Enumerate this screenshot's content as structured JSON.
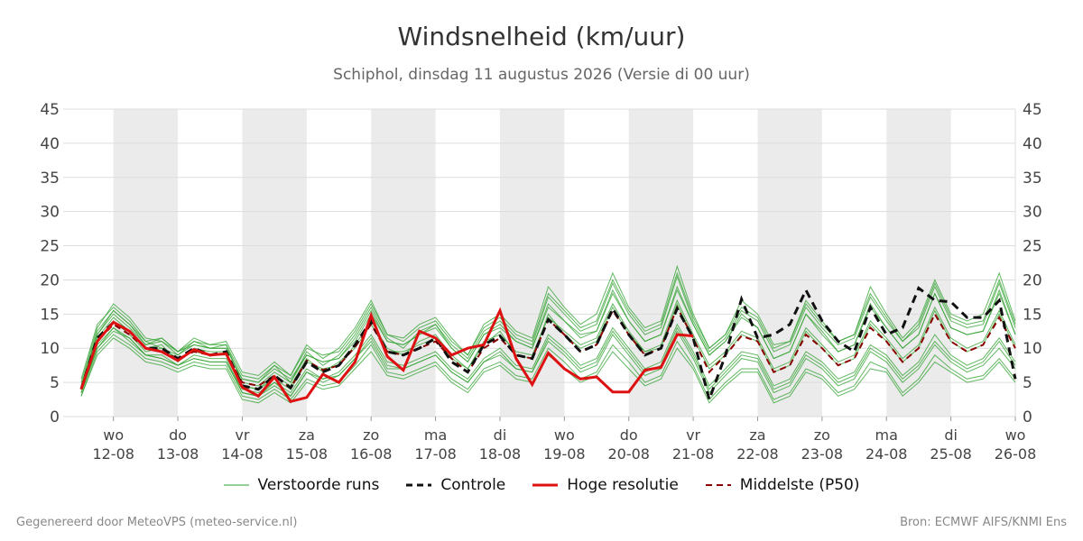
{
  "title": "Windsnelheid (km/uur)",
  "subtitle": "Schiphol, dinsdag 11 augustus 2026 (Versie di 00 uur)",
  "footer": {
    "left": "Gegenereerd door MeteoVPS (meteo-service.nl)",
    "right": "Bron: ECMWF AIFS/KNMI Ens"
  },
  "legend": {
    "ensemble": "Verstoorde runs",
    "control": "Controle",
    "hires": "Hoge resolutie",
    "median": "Middelste (P50)"
  },
  "colors": {
    "ensemble": "#2ca02c",
    "control": "#111111",
    "hires": "#dd1111",
    "median": "#8b0000",
    "weekend_band": "#ebebeb",
    "grid": "#dddddd",
    "tick_text": "#444444"
  },
  "chart_data": {
    "type": "line",
    "title": "Windsnelheid (km/uur)",
    "subtitle": "Schiphol, dinsdag 11 augustus 2026 (Versie di 00 uur)",
    "x_unit": "dag",
    "xlim": [
      11.75,
      26.0
    ],
    "ylim": [
      0,
      45
    ],
    "y_ticks": [
      0,
      5,
      10,
      15,
      20,
      25,
      30,
      35,
      40,
      45
    ],
    "y_axis_both_sides": true,
    "grid": true,
    "legend_position": "bottom",
    "x_ticks": [
      {
        "x": 12,
        "day": "wo",
        "date": "12-08"
      },
      {
        "x": 13,
        "day": "do",
        "date": "13-08"
      },
      {
        "x": 14,
        "day": "vr",
        "date": "14-08"
      },
      {
        "x": 15,
        "day": "za",
        "date": "15-08"
      },
      {
        "x": 16,
        "day": "zo",
        "date": "16-08"
      },
      {
        "x": 17,
        "day": "ma",
        "date": "17-08"
      },
      {
        "x": 18,
        "day": "di",
        "date": "18-08"
      },
      {
        "x": 19,
        "day": "wo",
        "date": "19-08"
      },
      {
        "x": 20,
        "day": "do",
        "date": "20-08"
      },
      {
        "x": 21,
        "day": "vr",
        "date": "21-08"
      },
      {
        "x": 22,
        "day": "za",
        "date": "22-08"
      },
      {
        "x": 23,
        "day": "zo",
        "date": "23-08"
      },
      {
        "x": 24,
        "day": "ma",
        "date": "24-08"
      },
      {
        "x": 25,
        "day": "di",
        "date": "25-08"
      },
      {
        "x": 26,
        "day": "wo",
        "date": "26-08"
      }
    ],
    "shaded_bands": [
      [
        12,
        13
      ],
      [
        14,
        15
      ],
      [
        16,
        17
      ],
      [
        18,
        19
      ],
      [
        20,
        21
      ],
      [
        22,
        23
      ],
      [
        24,
        25
      ]
    ],
    "control": {
      "name": "Controle",
      "x": [
        11.5,
        11.75,
        12.0,
        12.25,
        12.5,
        12.75,
        13.0,
        13.25,
        13.5,
        13.75,
        14.0,
        14.25,
        14.5,
        14.75,
        15.0,
        15.25,
        15.5,
        15.75,
        16.0,
        16.25,
        16.5,
        16.75,
        17.0,
        17.25,
        17.5,
        17.75,
        18.0,
        18.25,
        18.5,
        18.75,
        19.0,
        19.25,
        19.5,
        19.75,
        20.0,
        20.25,
        20.5,
        20.75,
        21.0,
        21.25,
        21.5,
        21.75,
        22.0,
        22.25,
        22.5,
        22.75,
        23.0,
        23.25,
        23.5,
        23.75,
        24.0,
        24.25,
        24.5,
        24.75,
        25.0,
        25.25,
        25.5,
        25.75,
        26.0
      ],
      "values": [
        4.0,
        11.5,
        13.8,
        12.5,
        10.0,
        10.0,
        8.5,
        10.0,
        9.0,
        9.5,
        4.5,
        4.0,
        6.0,
        4.2,
        8.0,
        6.5,
        7.5,
        10.5,
        14.0,
        9.5,
        9.0,
        10.0,
        11.5,
        8.0,
        6.5,
        10.5,
        11.8,
        9.0,
        8.5,
        14.2,
        12.0,
        9.5,
        10.5,
        15.8,
        12.0,
        9.0,
        10.0,
        15.8,
        11.5,
        2.5,
        9.0,
        17.2,
        11.5,
        12.0,
        13.5,
        18.5,
        14.0,
        11.0,
        9.5,
        16.0,
        12.0,
        13.0,
        18.8,
        17.0,
        16.8,
        14.5,
        14.5,
        17.0,
        5.5
      ]
    },
    "hires": {
      "name": "Hoge resolutie",
      "x": [
        11.5,
        11.75,
        12.0,
        12.25,
        12.5,
        12.75,
        13.0,
        13.25,
        13.5,
        13.75,
        14.0,
        14.25,
        14.5,
        14.75,
        15.0,
        15.25,
        15.5,
        15.75,
        16.0,
        16.25,
        16.5,
        16.75,
        17.0,
        17.25,
        17.5,
        17.75,
        18.0,
        18.25,
        18.5,
        18.75,
        19.0,
        19.25,
        19.5,
        19.75,
        20.0,
        20.25,
        20.5,
        20.75,
        21.0
      ],
      "values": [
        4.0,
        11.0,
        13.8,
        12.5,
        10.0,
        9.5,
        8.2,
        9.8,
        9.0,
        9.2,
        4.3,
        3.0,
        5.8,
        2.2,
        2.8,
        6.2,
        5.0,
        8.0,
        14.8,
        8.8,
        6.8,
        12.5,
        11.5,
        9.0,
        10.0,
        10.5,
        15.5,
        8.5,
        4.7,
        9.3,
        7.0,
        5.5,
        5.8,
        3.6,
        3.6,
        6.8,
        7.2,
        12.0,
        11.8
      ]
    },
    "median": {
      "name": "Middelste (P50)",
      "x": [
        11.5,
        11.75,
        12.0,
        12.25,
        12.5,
        12.75,
        13.0,
        13.25,
        13.5,
        13.75,
        14.0,
        14.25,
        14.5,
        14.75,
        15.0,
        15.25,
        15.5,
        15.75,
        16.0,
        16.25,
        16.5,
        16.75,
        17.0,
        17.25,
        17.5,
        17.75,
        18.0,
        18.25,
        18.5,
        18.75,
        19.0,
        19.25,
        19.5,
        19.75,
        20.0,
        20.25,
        20.5,
        20.75,
        21.0,
        21.25,
        21.5,
        21.75,
        22.0,
        22.25,
        22.5,
        22.75,
        23.0,
        23.25,
        23.5,
        23.75,
        24.0,
        24.25,
        24.5,
        24.75,
        25.0,
        25.25,
        25.5,
        25.75,
        26.0
      ],
      "values": [
        4.0,
        11.0,
        13.5,
        12.0,
        10.0,
        9.5,
        8.5,
        9.5,
        9.0,
        9.2,
        5.0,
        4.5,
        6.0,
        4.2,
        8.2,
        6.8,
        7.5,
        10.2,
        13.5,
        9.5,
        9.0,
        10.0,
        11.0,
        8.5,
        6.5,
        10.0,
        11.5,
        9.0,
        8.5,
        14.2,
        12.0,
        9.5,
        10.5,
        15.5,
        12.0,
        9.0,
        10.0,
        16.0,
        11.5,
        6.5,
        9.0,
        11.8,
        11.0,
        6.5,
        7.5,
        12.0,
        10.0,
        7.5,
        8.5,
        13.0,
        11.0,
        8.0,
        10.0,
        15.0,
        11.0,
        9.5,
        10.5,
        14.5,
        10.0
      ]
    },
    "ensemble": {
      "name": "Verstoorde runs",
      "x": [
        11.5,
        11.75,
        12.0,
        12.25,
        12.5,
        12.75,
        13.0,
        13.25,
        13.5,
        13.75,
        14.0,
        14.25,
        14.5,
        14.75,
        15.0,
        15.25,
        15.5,
        15.75,
        16.0,
        16.25,
        16.5,
        16.75,
        17.0,
        17.25,
        17.5,
        17.75,
        18.0,
        18.25,
        18.5,
        18.75,
        19.0,
        19.25,
        19.5,
        19.75,
        20.0,
        20.25,
        20.5,
        20.75,
        21.0,
        21.25,
        21.5,
        21.75,
        22.0,
        22.25,
        22.5,
        22.75,
        23.0,
        23.25,
        23.5,
        23.75,
        24.0,
        24.25,
        24.5,
        24.75,
        25.0,
        25.25,
        25.5,
        25.75,
        26.0
      ],
      "members": [
        [
          4.5,
          12.0,
          15.0,
          13.0,
          10.5,
          11.0,
          9.0,
          10.5,
          10.0,
          10.0,
          5.5,
          5.0,
          7.0,
          5.5,
          9.0,
          8.0,
          8.5,
          11.5,
          15.5,
          11.0,
          10.5,
          12.0,
          13.0,
          10.0,
          8.0,
          12.0,
          13.0,
          11.0,
          10.0,
          16.5,
          14.0,
          12.0,
          12.5,
          18.5,
          14.0,
          11.0,
          12.0,
          19.0,
          13.5,
          9.0,
          11.0,
          14.5,
          13.0,
          8.5,
          9.5,
          15.0,
          12.0,
          9.5,
          10.5,
          16.0,
          13.0,
          10.0,
          12.0,
          18.0,
          13.0,
          12.0,
          12.5,
          18.0,
          12.0
        ],
        [
          3.5,
          10.0,
          12.5,
          11.5,
          9.0,
          8.5,
          7.5,
          8.5,
          8.0,
          8.0,
          4.0,
          3.5,
          5.0,
          3.5,
          7.0,
          5.5,
          6.5,
          9.0,
          12.0,
          8.0,
          7.5,
          8.5,
          9.5,
          7.0,
          5.5,
          8.5,
          10.0,
          7.5,
          7.0,
          12.0,
          10.0,
          7.5,
          8.5,
          13.0,
          10.0,
          7.0,
          8.0,
          13.5,
          9.5,
          4.5,
          7.0,
          9.5,
          9.0,
          4.5,
          5.5,
          9.5,
          8.0,
          5.5,
          6.5,
          10.5,
          9.0,
          6.0,
          8.0,
          12.0,
          9.0,
          7.5,
          8.5,
          11.5,
          8.0
        ],
        [
          5.0,
          13.0,
          16.5,
          14.5,
          11.5,
          11.0,
          9.5,
          11.5,
          10.5,
          11.0,
          6.5,
          6.0,
          8.0,
          6.0,
          10.5,
          8.5,
          10.0,
          13.0,
          17.0,
          12.0,
          11.5,
          13.5,
          14.5,
          11.5,
          9.0,
          13.5,
          15.0,
          12.5,
          11.5,
          19.0,
          16.0,
          13.5,
          15.0,
          21.0,
          16.0,
          13.0,
          14.0,
          22.0,
          15.0,
          10.0,
          12.0,
          17.0,
          15.0,
          10.5,
          11.0,
          17.0,
          14.0,
          11.0,
          12.0,
          19.0,
          15.0,
          11.5,
          14.0,
          20.0,
          15.0,
          14.0,
          15.0,
          21.0,
          14.0
        ],
        [
          3.0,
          9.5,
          12.0,
          10.5,
          8.5,
          8.0,
          7.0,
          8.0,
          7.5,
          7.5,
          3.0,
          2.5,
          4.0,
          2.5,
          5.5,
          4.5,
          5.0,
          7.5,
          10.5,
          6.5,
          6.0,
          7.0,
          8.0,
          5.5,
          4.0,
          7.0,
          8.0,
          6.0,
          5.5,
          10.0,
          8.0,
          5.5,
          6.5,
          10.5,
          8.0,
          5.0,
          6.0,
          11.0,
          7.5,
          2.5,
          5.0,
          7.0,
          7.0,
          2.5,
          3.5,
          7.0,
          6.0,
          3.5,
          4.5,
          8.0,
          7.0,
          3.5,
          5.5,
          9.0,
          7.0,
          5.5,
          6.0,
          8.5,
          5.5
        ],
        [
          4.0,
          11.5,
          14.5,
          12.5,
          10.0,
          10.5,
          8.0,
          10.0,
          9.5,
          9.5,
          4.5,
          4.0,
          5.5,
          4.0,
          8.0,
          7.0,
          7.5,
          10.5,
          14.0,
          10.0,
          9.0,
          11.0,
          12.0,
          9.0,
          7.0,
          11.0,
          12.0,
          9.5,
          9.0,
          14.5,
          12.5,
          10.5,
          11.5,
          16.5,
          12.5,
          9.5,
          10.5,
          17.0,
          12.0,
          7.5,
          9.5,
          12.5,
          11.5,
          7.0,
          8.0,
          13.0,
          10.5,
          8.0,
          9.0,
          14.0,
          11.5,
          8.5,
          10.5,
          16.0,
          11.5,
          10.0,
          11.0,
          15.5,
          10.5
        ],
        [
          4.5,
          12.5,
          15.5,
          13.5,
          11.0,
          10.0,
          9.0,
          11.0,
          10.0,
          10.5,
          5.0,
          4.5,
          6.5,
          5.0,
          9.5,
          7.5,
          9.0,
          12.0,
          16.0,
          11.5,
          10.0,
          12.5,
          13.5,
          10.5,
          8.5,
          12.5,
          14.0,
          11.5,
          10.5,
          17.5,
          15.0,
          12.5,
          13.5,
          19.5,
          15.0,
          12.0,
          13.0,
          20.5,
          14.0,
          9.5,
          11.5,
          15.5,
          14.0,
          9.5,
          10.5,
          16.0,
          13.0,
          10.5,
          11.5,
          17.5,
          14.0,
          11.0,
          13.0,
          19.0,
          14.0,
          13.0,
          13.5,
          19.5,
          13.0
        ],
        [
          3.5,
          10.5,
          13.0,
          11.5,
          9.0,
          9.0,
          7.5,
          9.0,
          8.5,
          8.5,
          3.5,
          3.0,
          4.5,
          3.0,
          6.5,
          5.5,
          6.0,
          8.5,
          11.5,
          7.5,
          7.0,
          8.0,
          9.0,
          6.5,
          5.0,
          8.0,
          9.0,
          7.0,
          6.5,
          11.0,
          9.0,
          6.5,
          7.5,
          12.0,
          9.0,
          6.0,
          7.0,
          12.5,
          8.5,
          3.5,
          6.0,
          8.5,
          8.0,
          3.5,
          4.5,
          8.5,
          7.0,
          4.5,
          5.5,
          9.5,
          8.0,
          5.0,
          7.0,
          10.5,
          8.0,
          6.5,
          7.5,
          10.0,
          7.0
        ],
        [
          5.5,
          13.5,
          16.0,
          14.0,
          11.0,
          11.5,
          9.5,
          11.0,
          10.5,
          10.5,
          6.0,
          5.5,
          7.5,
          6.0,
          10.0,
          9.0,
          9.5,
          12.5,
          16.5,
          12.0,
          11.0,
          13.0,
          14.0,
          11.0,
          9.0,
          13.0,
          14.5,
          12.0,
          11.0,
          18.0,
          15.5,
          13.0,
          14.0,
          20.0,
          15.5,
          12.5,
          13.5,
          21.0,
          14.5,
          10.0,
          12.0,
          16.0,
          14.5,
          10.0,
          11.0,
          16.5,
          13.5,
          11.0,
          12.0,
          18.0,
          14.5,
          11.0,
          13.5,
          19.5,
          14.5,
          13.5,
          14.0,
          20.0,
          13.5
        ],
        [
          3.0,
          9.0,
          11.5,
          10.0,
          8.0,
          7.5,
          6.5,
          7.5,
          7.0,
          7.0,
          2.5,
          2.0,
          3.5,
          2.0,
          5.0,
          4.0,
          4.5,
          7.0,
          9.5,
          6.0,
          5.5,
          6.5,
          7.5,
          5.0,
          3.5,
          6.5,
          7.5,
          5.5,
          5.0,
          9.0,
          7.0,
          5.0,
          6.0,
          9.5,
          7.0,
          4.5,
          5.5,
          10.0,
          7.0,
          2.0,
          4.5,
          6.5,
          6.5,
          2.0,
          3.0,
          6.5,
          5.5,
          3.0,
          4.0,
          7.0,
          6.5,
          3.0,
          5.0,
          8.0,
          6.5,
          5.0,
          5.5,
          8.0,
          5.0
        ],
        [
          4.0,
          11.0,
          14.0,
          12.0,
          9.5,
          10.0,
          8.5,
          9.5,
          9.0,
          9.0,
          4.5,
          4.0,
          6.0,
          4.5,
          8.5,
          6.5,
          8.0,
          10.0,
          13.5,
          9.5,
          9.5,
          10.5,
          11.5,
          8.5,
          7.0,
          10.5,
          12.5,
          9.0,
          8.5,
          15.0,
          12.0,
          10.0,
          11.0,
          16.0,
          12.0,
          9.5,
          10.0,
          16.5,
          11.5,
          7.0,
          9.0,
          12.0,
          11.0,
          6.5,
          7.5,
          12.5,
          10.0,
          7.5,
          8.5,
          13.5,
          11.0,
          8.0,
          10.0,
          15.5,
          11.0,
          9.5,
          10.5,
          15.0,
          10.0
        ],
        [
          4.5,
          12.0,
          15.5,
          13.5,
          10.5,
          11.5,
          9.5,
          10.5,
          10.0,
          10.0,
          5.5,
          5.0,
          7.5,
          5.0,
          9.0,
          8.0,
          8.5,
          11.0,
          15.0,
          11.0,
          10.5,
          12.0,
          13.5,
          10.0,
          8.0,
          12.0,
          13.5,
          11.0,
          10.0,
          16.0,
          14.0,
          11.5,
          12.5,
          18.0,
          14.0,
          11.0,
          12.0,
          18.5,
          13.5,
          9.0,
          11.0,
          15.0,
          13.0,
          8.5,
          9.5,
          15.0,
          12.5,
          9.5,
          10.5,
          16.5,
          13.0,
          10.0,
          12.0,
          18.0,
          13.0,
          12.0,
          12.5,
          18.5,
          12.0
        ],
        [
          3.5,
          10.0,
          13.0,
          11.0,
          9.0,
          8.5,
          7.5,
          8.5,
          8.0,
          8.0,
          3.5,
          3.0,
          5.0,
          3.0,
          6.5,
          5.0,
          6.0,
          8.5,
          11.0,
          7.0,
          7.0,
          8.0,
          9.0,
          6.5,
          5.0,
          8.0,
          9.5,
          7.0,
          6.5,
          11.5,
          9.5,
          7.0,
          8.0,
          12.5,
          9.5,
          6.5,
          7.5,
          13.0,
          9.0,
          4.0,
          6.5,
          9.0,
          8.5,
          4.0,
          5.0,
          9.0,
          7.5,
          5.0,
          6.0,
          10.0,
          8.5,
          5.5,
          7.5,
          11.0,
          8.5,
          7.0,
          8.0,
          11.0,
          7.5
        ]
      ]
    }
  }
}
